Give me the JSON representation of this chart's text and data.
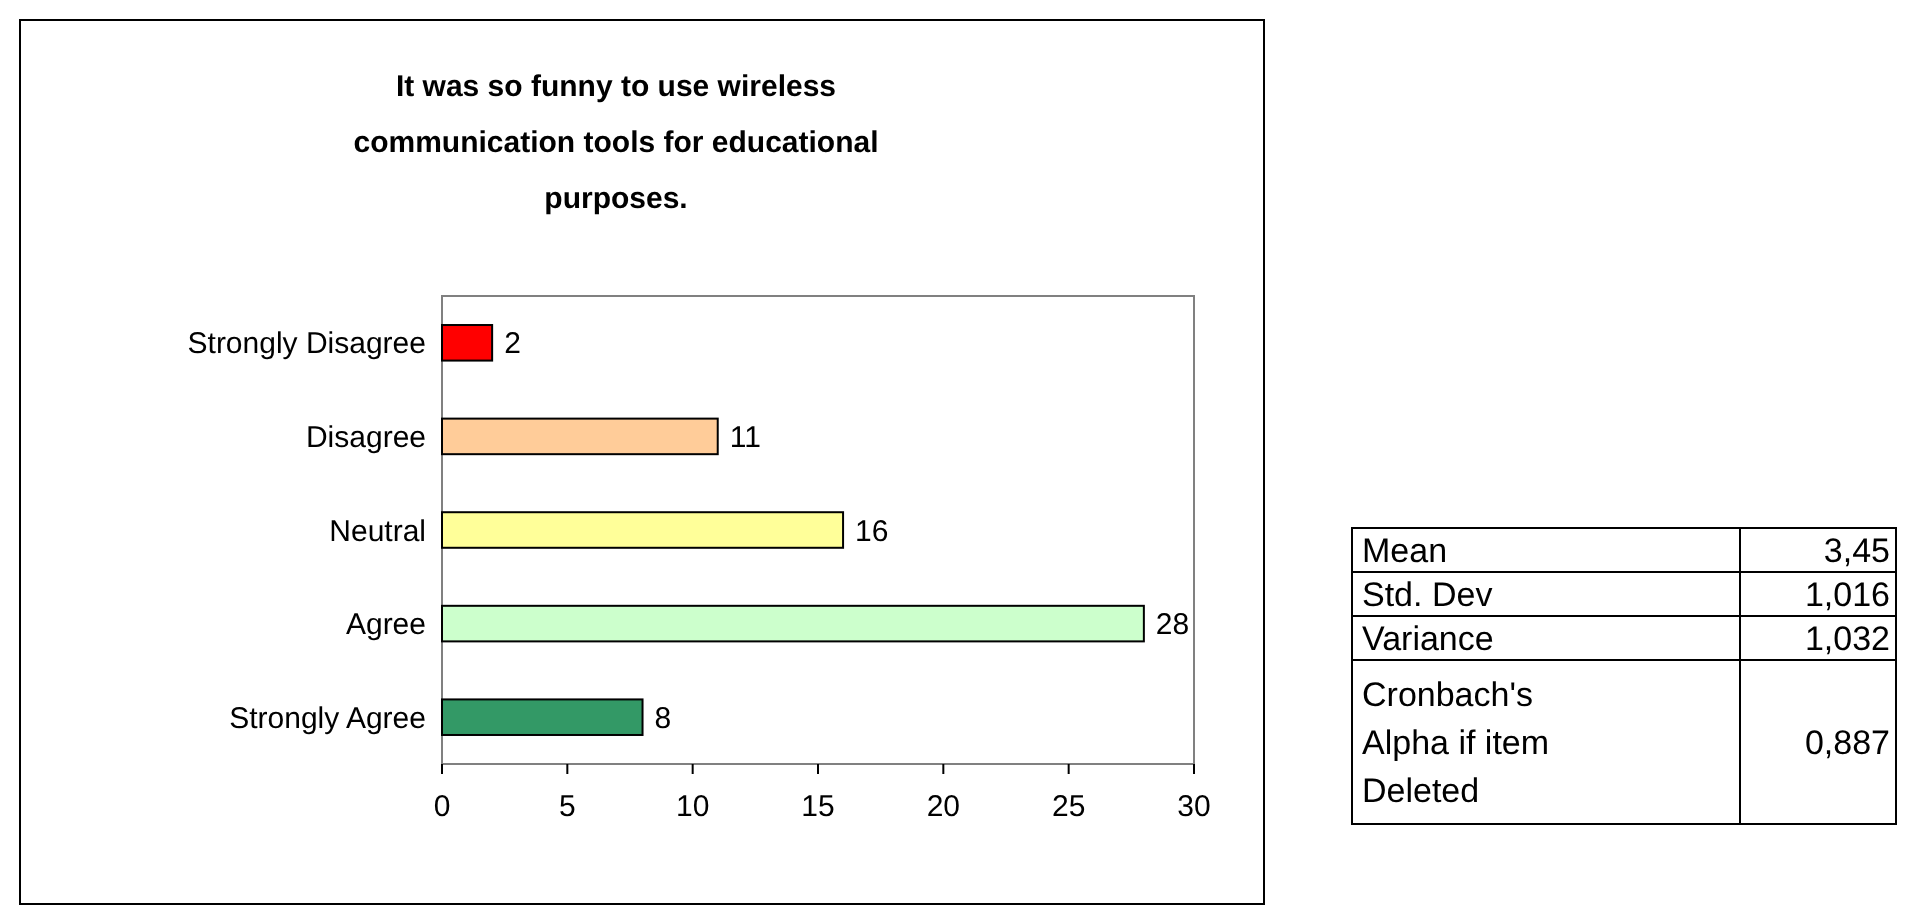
{
  "chart_data": [
    {
      "type": "bar",
      "orientation": "horizontal",
      "title": "It was so funny to use wireless communication tools for educational purposes.",
      "categories": [
        "Strongly Disagree",
        "Disagree",
        "Neutral",
        "Agree",
        "Strongly Agree"
      ],
      "values": [
        2,
        11,
        16,
        28,
        8
      ],
      "colors": [
        "#ff0000",
        "#ffcc99",
        "#ffff99",
        "#ccffcc",
        "#339966"
      ],
      "xlim": [
        0,
        30
      ],
      "xticks": [
        0,
        5,
        10,
        15,
        20,
        25,
        30
      ],
      "data_labels": true
    },
    {
      "type": "other",
      "categories": [
        "Mean",
        "Std. Dev",
        "Variance",
        "Cronbach's Alpha if item Deleted"
      ],
      "value_labels": [
        "3,45",
        "1,016",
        "1,032",
        "0,887"
      ]
    }
  ]
}
